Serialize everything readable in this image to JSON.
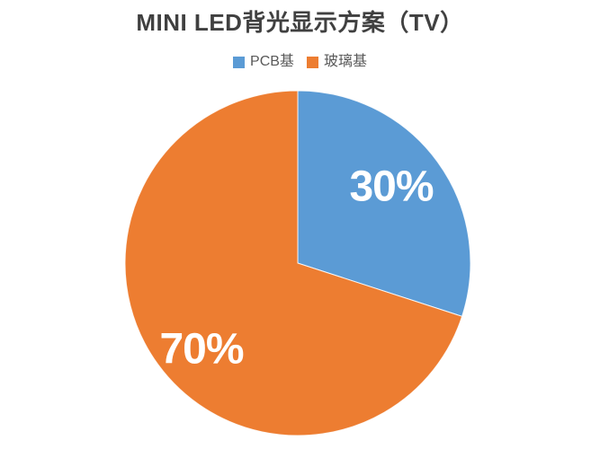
{
  "title": "MINI LED背光显示方案（TV）",
  "legend": {
    "items": [
      {
        "label": "PCB基",
        "color": "#5B9BD5"
      },
      {
        "label": "玻璃基",
        "color": "#ED7D31"
      }
    ],
    "position": "top"
  },
  "chart_data": {
    "type": "pie",
    "title": "MINI LED背光显示方案（TV）",
    "categories": [
      "PCB基",
      "玻璃基"
    ],
    "values": [
      30,
      70
    ],
    "display_labels": [
      "30%",
      "70%"
    ],
    "colors": [
      "#5B9BD5",
      "#ED7D31"
    ],
    "data_label_color": "#FFFFFF",
    "legend_position": "top",
    "rotation": "first slice starts at 12 o'clock, clockwise",
    "background": "#FFFFFF",
    "title_color": "#404040",
    "legend_text_color": "#595959"
  }
}
